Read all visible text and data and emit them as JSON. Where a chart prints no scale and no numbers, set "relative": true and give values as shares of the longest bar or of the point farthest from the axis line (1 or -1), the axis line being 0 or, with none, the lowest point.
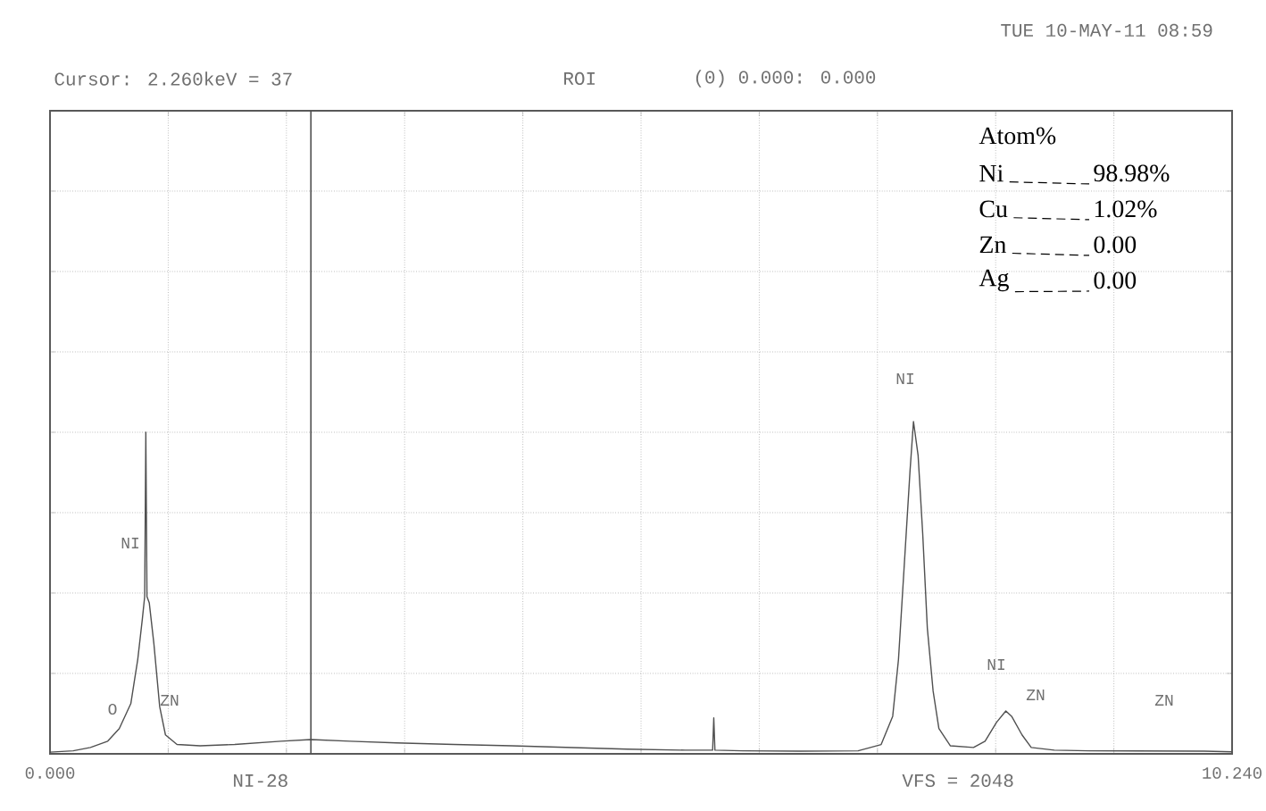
{
  "chart_data": {
    "type": "line",
    "x": [
      0.0,
      0.2,
      0.35,
      0.5,
      0.6,
      0.7,
      0.76,
      0.8,
      0.82,
      0.83,
      0.84,
      0.86,
      0.9,
      0.95,
      1.0,
      1.1,
      1.3,
      1.6,
      2.0,
      2.26,
      2.6,
      3.0,
      3.5,
      4.0,
      4.5,
      5.0,
      5.5,
      5.74,
      5.75,
      5.76,
      6.0,
      6.5,
      7.0,
      7.2,
      7.3,
      7.35,
      7.4,
      7.45,
      7.48,
      7.52,
      7.56,
      7.6,
      7.65,
      7.7,
      7.8,
      8.0,
      8.1,
      8.2,
      8.28,
      8.33,
      8.42,
      8.5,
      8.7,
      9.0,
      10.0,
      10.24
    ],
    "relative": true,
    "series": [
      {
        "color": "#505050",
        "values": [
          0.005,
          0.009,
          0.019,
          0.038,
          0.076,
          0.151,
          0.284,
          0.406,
          0.473,
          0.968,
          0.473,
          0.454,
          0.331,
          0.142,
          0.057,
          0.028,
          0.024,
          0.028,
          0.038,
          0.043,
          0.038,
          0.033,
          0.028,
          0.024,
          0.019,
          0.014,
          0.011,
          0.011,
          0.108,
          0.011,
          0.009,
          0.008,
          0.009,
          0.028,
          0.113,
          0.284,
          0.567,
          0.851,
          1,
          0.898,
          0.662,
          0.378,
          0.189,
          0.076,
          0.024,
          0.019,
          0.038,
          0.095,
          0.129,
          0.113,
          0.057,
          0.019,
          0.011,
          0.009,
          0.008,
          0.006
        ]
      }
    ],
    "xlim": [
      0,
      10.24
    ],
    "xticks": [
      {
        "value": 0,
        "label": "0.000"
      },
      {
        "value": 1.024,
        "label": null
      },
      {
        "value": 2.048,
        "label": null
      },
      {
        "value": 3.072,
        "label": null
      },
      {
        "value": 4.096,
        "label": null
      },
      {
        "value": 5.12,
        "label": null
      },
      {
        "value": 6.144,
        "label": null
      },
      {
        "value": 7.168,
        "label": null
      },
      {
        "value": 8.192,
        "label": null
      },
      {
        "value": 9.216,
        "label": null
      },
      {
        "value": 10.24,
        "label": "10.240"
      }
    ],
    "tick_labels": "x",
    "grid": true,
    "ref_lines": [
      {
        "axis": "x",
        "value": 2.26,
        "color": "#505050"
      }
    ],
    "annotations": [
      "TUE 10-MAY-11  08:59",
      "Cursor: 2.260keV = 37",
      "ROI",
      "(0) 0.000: 0.000",
      "NI-28",
      "VFS = 2048",
      "Atom%",
      "Ni",
      "98.98%",
      "Cu",
      "1.02%",
      "Zn",
      "0.00",
      "Ag",
      "0.00",
      "O",
      "NI",
      "ZN",
      "NI",
      "NI",
      "ZN",
      "ZN"
    ]
  }
}
